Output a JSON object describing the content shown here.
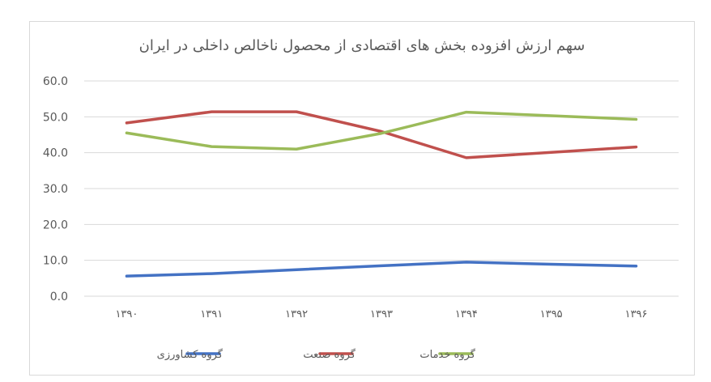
{
  "chart_data": {
    "type": "line",
    "title": "سهم ارزش افزوده بخش های اقتصادی از محصول ناخالص داخلی در ایران",
    "categories": [
      "۱۳۹۰",
      "۱۳۹۱",
      "۱۳۹۲",
      "۱۳۹۳",
      "۱۳۹۴",
      "۱۳۹۵",
      "۱۳۹۶"
    ],
    "ylim": [
      0,
      60
    ],
    "yticks": [
      "0.0",
      "10.0",
      "20.0",
      "30.0",
      "40.0",
      "50.0",
      "60.0"
    ],
    "grid": true,
    "legend_position": "bottom",
    "series": [
      {
        "name": "گروه کشاورزی",
        "color": "#4472c4",
        "values": [
          5.6,
          6.3,
          7.4,
          8.5,
          9.5,
          8.9,
          8.4
        ]
      },
      {
        "name": "گروه صنعت",
        "color": "#c0504d",
        "values": [
          48.3,
          51.4,
          51.4,
          45.9,
          38.6,
          40.1,
          41.6
        ]
      },
      {
        "name": "گروه خدمات",
        "color": "#9bbb59",
        "values": [
          45.5,
          41.7,
          41.0,
          45.4,
          51.3,
          50.3,
          49.3
        ]
      }
    ]
  }
}
